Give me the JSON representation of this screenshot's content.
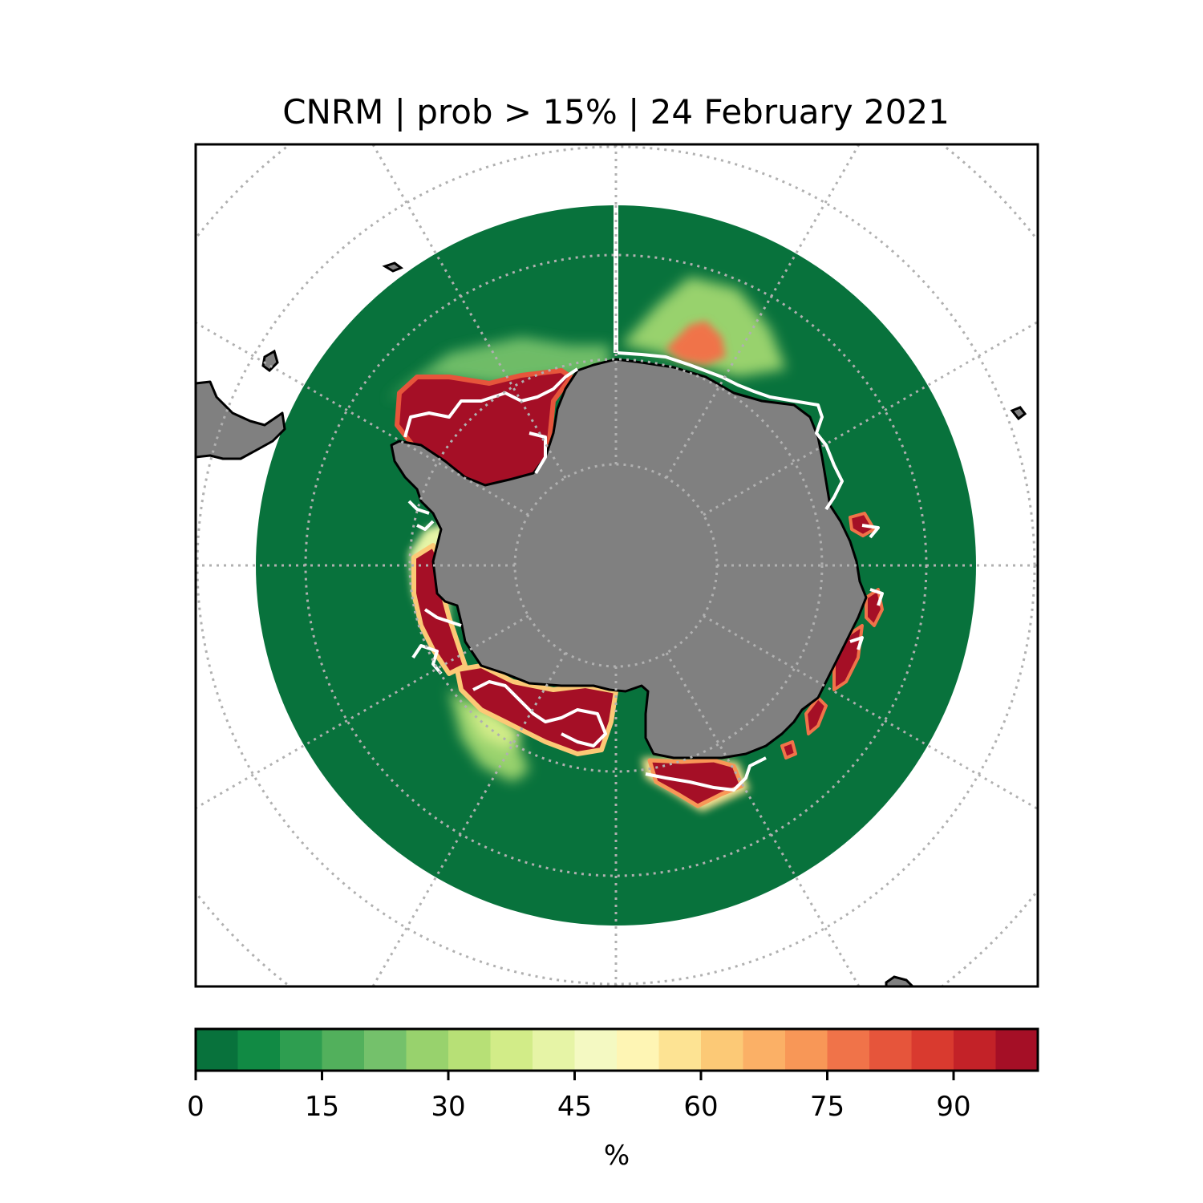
{
  "title": "CNRM | prob > 15% | 24 February 2021",
  "colors": {
    "ocean": "#08723c",
    "land": "#808080",
    "coast": "#000000",
    "observed_edge": "#ffffff",
    "grid": "#b0b0b0",
    "background": "#ffffff"
  },
  "colorbar": {
    "label": "%",
    "min": 0,
    "max": 100,
    "step": 5,
    "ticks": [
      {
        "value": 0,
        "label": "0"
      },
      {
        "value": 15,
        "label": "15"
      },
      {
        "value": 30,
        "label": "30"
      },
      {
        "value": 45,
        "label": "45"
      },
      {
        "value": 60,
        "label": "60"
      },
      {
        "value": 75,
        "label": "75"
      },
      {
        "value": 90,
        "label": "90"
      }
    ],
    "colors": [
      "#08723c",
      "#118a44",
      "#2e9e50",
      "#52b05c",
      "#74c16b",
      "#98d26d",
      "#b7e076",
      "#d2ec88",
      "#e6f4a6",
      "#f4f9c2",
      "#fef5b4",
      "#fde393",
      "#fcc976",
      "#fbb066",
      "#f89757",
      "#f07349",
      "#e6553b",
      "#d93a2f",
      "#c32228",
      "#a50f26"
    ]
  }
}
